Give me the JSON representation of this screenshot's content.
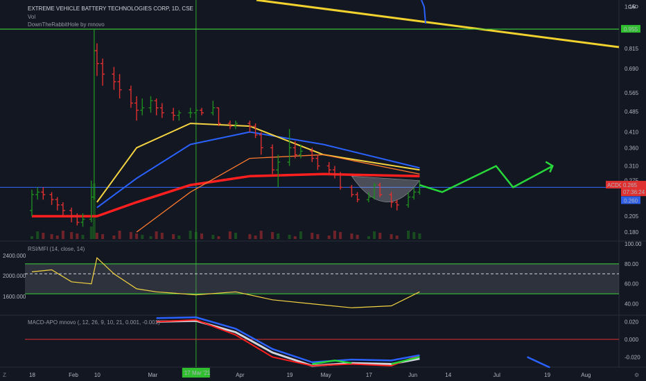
{
  "header": {
    "title": "EXTREME VEHICLE BATTERY TECHNOLOGIES CORP, 1D, CSE",
    "vol_label": "Vol",
    "indicator": "DownTheRabbitHole by mnovo",
    "currency": "CAD"
  },
  "price_axis": {
    "ticks": [
      "1.15",
      "0.815",
      "0.690",
      "0.565",
      "0.485",
      "0.410",
      "0.360",
      "0.310",
      "0.275",
      "0.235",
      "0.205",
      "0.180"
    ],
    "badge_symbol": "ACDC",
    "badge_price": "0.265",
    "badge_countdown": "07:36:24",
    "level_green": "0.955",
    "level_blue": "0.260"
  },
  "rsi_panel": {
    "title": "RSI/MFI (14, close, 14)",
    "right_ticks": [
      "100.00",
      "80.00",
      "60.00",
      "40.00"
    ],
    "left_ticks": [
      "2400.000",
      "2000.000",
      "1600.000"
    ]
  },
  "macd_panel": {
    "title": "MACD-APO mnovo (, 12, 26, 9, 10, 21, 0.001, -0.001)",
    "right_ticks": [
      "0.020",
      "0.000",
      "-0.020"
    ]
  },
  "time_axis": {
    "ticks": [
      "18",
      "Feb",
      "10",
      "Mar",
      "17 Mar '21",
      "Apr",
      "19",
      "May",
      "17",
      "Jun",
      "14",
      "Jul",
      "19",
      "Aug"
    ],
    "highlight": "17 Mar '21"
  },
  "colors": {
    "background": "#131722",
    "up": "#1e8c1e",
    "down": "#e03030",
    "ma_blue": "#2962ff",
    "ma_yellow": "#f5d442",
    "ma_red": "#ff1f1f",
    "ma_orange": "#ff7a2f",
    "level_green": "#3cd33c",
    "level_blue": "#2f5fe6",
    "projection": "#27d83a",
    "trendline": "#f2d22e"
  },
  "chart_data": [
    {
      "type": "candlestick",
      "title": "EXTREME VEHICLE BATTERY TECHNOLOGIES CORP, 1D, CSE",
      "x_range": [
        "2021-01-18",
        "2021-08-10"
      ],
      "ylim": [
        0.17,
        1.2
      ],
      "candles": [
        {
          "date": "2021-01-18",
          "o": 0.215,
          "c": 0.245,
          "h": 0.255,
          "l": 0.205
        },
        {
          "date": "2021-01-20",
          "o": 0.245,
          "c": 0.25,
          "h": 0.26,
          "l": 0.235
        },
        {
          "date": "2021-01-22",
          "o": 0.25,
          "c": 0.245,
          "h": 0.26,
          "l": 0.235
        },
        {
          "date": "2021-01-25",
          "o": 0.245,
          "c": 0.235,
          "h": 0.25,
          "l": 0.225
        },
        {
          "date": "2021-01-27",
          "o": 0.235,
          "c": 0.225,
          "h": 0.24,
          "l": 0.215
        },
        {
          "date": "2021-01-29",
          "o": 0.225,
          "c": 0.215,
          "h": 0.23,
          "l": 0.205
        },
        {
          "date": "2021-02-01",
          "o": 0.215,
          "c": 0.205,
          "h": 0.22,
          "l": 0.195
        },
        {
          "date": "2021-02-03",
          "o": 0.205,
          "c": 0.195,
          "h": 0.21,
          "l": 0.19
        },
        {
          "date": "2021-02-05",
          "o": 0.195,
          "c": 0.2,
          "h": 0.21,
          "l": 0.188
        },
        {
          "date": "2021-02-08",
          "o": 0.2,
          "c": 0.24,
          "h": 0.275,
          "l": 0.195
        },
        {
          "date": "2021-02-09",
          "o": 0.24,
          "c": 0.8,
          "h": 0.955,
          "l": 0.235
        },
        {
          "date": "2021-02-10",
          "o": 0.8,
          "c": 0.72,
          "h": 0.85,
          "l": 0.65
        },
        {
          "date": "2021-02-12",
          "o": 0.72,
          "c": 0.66,
          "h": 0.75,
          "l": 0.6
        },
        {
          "date": "2021-02-16",
          "o": 0.66,
          "c": 0.62,
          "h": 0.7,
          "l": 0.58
        },
        {
          "date": "2021-02-18",
          "o": 0.62,
          "c": 0.58,
          "h": 0.66,
          "l": 0.54
        },
        {
          "date": "2021-02-22",
          "o": 0.58,
          "c": 0.52,
          "h": 0.6,
          "l": 0.5
        },
        {
          "date": "2021-02-24",
          "o": 0.52,
          "c": 0.49,
          "h": 0.55,
          "l": 0.45
        },
        {
          "date": "2021-02-26",
          "o": 0.49,
          "c": 0.5,
          "h": 0.54,
          "l": 0.47
        },
        {
          "date": "2021-03-01",
          "o": 0.5,
          "c": 0.53,
          "h": 0.55,
          "l": 0.48
        },
        {
          "date": "2021-03-03",
          "o": 0.53,
          "c": 0.5,
          "h": 0.54,
          "l": 0.47
        },
        {
          "date": "2021-03-05",
          "o": 0.5,
          "c": 0.48,
          "h": 0.52,
          "l": 0.46
        },
        {
          "date": "2021-03-09",
          "o": 0.48,
          "c": 0.47,
          "h": 0.5,
          "l": 0.45
        },
        {
          "date": "2021-03-11",
          "o": 0.47,
          "c": 0.48,
          "h": 0.49,
          "l": 0.45
        },
        {
          "date": "2021-03-15",
          "o": 0.48,
          "c": 0.48,
          "h": 0.5,
          "l": 0.46
        },
        {
          "date": "2021-03-17",
          "o": 0.48,
          "c": 0.49,
          "h": 0.5,
          "l": 0.46
        },
        {
          "date": "2021-03-19",
          "o": 0.49,
          "c": 0.48,
          "h": 0.5,
          "l": 0.47
        },
        {
          "date": "2021-03-23",
          "o": 0.48,
          "c": 0.5,
          "h": 0.53,
          "l": 0.47
        },
        {
          "date": "2021-03-25",
          "o": 0.5,
          "c": 0.44,
          "h": 0.5,
          "l": 0.43
        },
        {
          "date": "2021-03-29",
          "o": 0.44,
          "c": 0.43,
          "h": 0.45,
          "l": 0.42
        },
        {
          "date": "2021-03-31",
          "o": 0.43,
          "c": 0.44,
          "h": 0.45,
          "l": 0.42
        },
        {
          "date": "2021-04-05",
          "o": 0.44,
          "c": 0.43,
          "h": 0.45,
          "l": 0.41
        },
        {
          "date": "2021-04-07",
          "o": 0.43,
          "c": 0.4,
          "h": 0.44,
          "l": 0.39
        },
        {
          "date": "2021-04-09",
          "o": 0.4,
          "c": 0.36,
          "h": 0.41,
          "l": 0.34
        },
        {
          "date": "2021-04-13",
          "o": 0.36,
          "c": 0.3,
          "h": 0.37,
          "l": 0.29
        },
        {
          "date": "2021-04-15",
          "o": 0.3,
          "c": 0.32,
          "h": 0.34,
          "l": 0.26
        },
        {
          "date": "2021-04-19",
          "o": 0.32,
          "c": 0.36,
          "h": 0.42,
          "l": 0.31
        },
        {
          "date": "2021-04-21",
          "o": 0.36,
          "c": 0.34,
          "h": 0.38,
          "l": 0.33
        },
        {
          "date": "2021-04-23",
          "o": 0.34,
          "c": 0.35,
          "h": 0.37,
          "l": 0.33
        },
        {
          "date": "2021-04-27",
          "o": 0.35,
          "c": 0.33,
          "h": 0.36,
          "l": 0.32
        },
        {
          "date": "2021-04-29",
          "o": 0.33,
          "c": 0.31,
          "h": 0.34,
          "l": 0.3
        },
        {
          "date": "2021-05-03",
          "o": 0.31,
          "c": 0.3,
          "h": 0.32,
          "l": 0.29
        },
        {
          "date": "2021-05-05",
          "o": 0.3,
          "c": 0.29,
          "h": 0.31,
          "l": 0.28
        },
        {
          "date": "2021-05-07",
          "o": 0.29,
          "c": 0.26,
          "h": 0.295,
          "l": 0.255
        },
        {
          "date": "2021-05-11",
          "o": 0.26,
          "c": 0.245,
          "h": 0.265,
          "l": 0.24
        },
        {
          "date": "2021-05-13",
          "o": 0.245,
          "c": 0.235,
          "h": 0.25,
          "l": 0.23
        },
        {
          "date": "2021-05-17",
          "o": 0.235,
          "c": 0.24,
          "h": 0.25,
          "l": 0.23
        },
        {
          "date": "2021-05-19",
          "o": 0.24,
          "c": 0.265,
          "h": 0.27,
          "l": 0.235
        },
        {
          "date": "2021-05-21",
          "o": 0.265,
          "c": 0.245,
          "h": 0.27,
          "l": 0.24
        },
        {
          "date": "2021-05-25",
          "o": 0.245,
          "c": 0.23,
          "h": 0.25,
          "l": 0.22
        },
        {
          "date": "2021-05-27",
          "o": 0.23,
          "c": 0.225,
          "h": 0.235,
          "l": 0.215
        },
        {
          "date": "2021-05-31",
          "o": 0.225,
          "c": 0.24,
          "h": 0.25,
          "l": 0.22
        },
        {
          "date": "2021-06-02",
          "o": 0.24,
          "c": 0.25,
          "h": 0.26,
          "l": 0.235
        },
        {
          "date": "2021-06-04",
          "o": 0.25,
          "c": 0.265,
          "h": 0.275,
          "l": 0.245
        }
      ],
      "moving_averages": [
        {
          "color": "ma_red",
          "points": [
            [
              "2021-01-18",
              0.205
            ],
            [
              "2021-02-10",
              0.205
            ],
            [
              "2021-02-24",
              0.23
            ],
            [
              "2021-03-15",
              0.265
            ],
            [
              "2021-04-05",
              0.285
            ],
            [
              "2021-05-01",
              0.29
            ],
            [
              "2021-06-04",
              0.285
            ]
          ]
        },
        {
          "color": "ma_blue",
          "points": [
            [
              "2021-02-10",
              0.22
            ],
            [
              "2021-02-24",
              0.28
            ],
            [
              "2021-03-15",
              0.37
            ],
            [
              "2021-04-05",
              0.41
            ],
            [
              "2021-05-01",
              0.37
            ],
            [
              "2021-06-04",
              0.305
            ]
          ]
        },
        {
          "color": "ma_yellow",
          "points": [
            [
              "2021-02-10",
              0.23
            ],
            [
              "2021-02-24",
              0.36
            ],
            [
              "2021-03-15",
              0.44
            ],
            [
              "2021-04-05",
              0.43
            ],
            [
              "2021-05-01",
              0.34
            ],
            [
              "2021-06-04",
              0.3
            ]
          ]
        },
        {
          "color": "ma_orange",
          "points": [
            [
              "2021-02-24",
              0.18
            ],
            [
              "2021-03-15",
              0.25
            ],
            [
              "2021-04-05",
              0.33
            ],
            [
              "2021-05-01",
              0.34
            ],
            [
              "2021-06-04",
              0.29
            ]
          ]
        }
      ],
      "horizontal_levels": [
        0.955,
        0.26
      ],
      "projection": [
        [
          "2021-06-04",
          0.265
        ],
        [
          "2021-06-12",
          0.25
        ],
        [
          "2021-07-01",
          0.31
        ],
        [
          "2021-07-07",
          0.26
        ],
        [
          "2021-07-21",
          0.31
        ]
      ]
    },
    {
      "type": "line",
      "title": "RSI/MFI (14, close, 14)",
      "ylim": [
        30,
        100
      ],
      "bands": [
        80,
        70,
        50
      ],
      "x": [
        "2021-01-18",
        "2021-01-25",
        "2021-02-01",
        "2021-02-08",
        "2021-02-10",
        "2021-02-16",
        "2021-02-24",
        "2021-03-03",
        "2021-03-17",
        "2021-03-31",
        "2021-04-13",
        "2021-04-27",
        "2021-05-11",
        "2021-05-25",
        "2021-06-04"
      ],
      "values": [
        72,
        74,
        62,
        60,
        86,
        70,
        55,
        52,
        49,
        52,
        44,
        40,
        36,
        38,
        52
      ]
    },
    {
      "type": "line",
      "title": "MACD-APO mnovo (, 12, 26, 9, 10, 21, 0.001, -0.001)",
      "ylim": [
        -0.03,
        0.025
      ],
      "series_values": {
        "macd": [
          [
            "2021-03-03",
            0.02
          ],
          [
            "2021-03-17",
            0.022
          ],
          [
            "2021-03-31",
            0.005
          ],
          [
            "2021-04-13",
            -0.02
          ],
          [
            "2021-04-27",
            -0.03
          ],
          [
            "2021-05-11",
            -0.028
          ],
          [
            "2021-05-25",
            -0.03
          ],
          [
            "2021-06-04",
            -0.018
          ]
        ],
        "signal": [
          [
            "2021-03-03",
            0.02
          ],
          [
            "2021-03-17",
            0.021
          ],
          [
            "2021-03-31",
            0.008
          ],
          [
            "2021-04-13",
            -0.015
          ],
          [
            "2021-04-27",
            -0.03
          ],
          [
            "2021-05-11",
            -0.027
          ],
          [
            "2021-05-25",
            -0.028
          ],
          [
            "2021-06-04",
            -0.022
          ]
        ]
      }
    }
  ]
}
